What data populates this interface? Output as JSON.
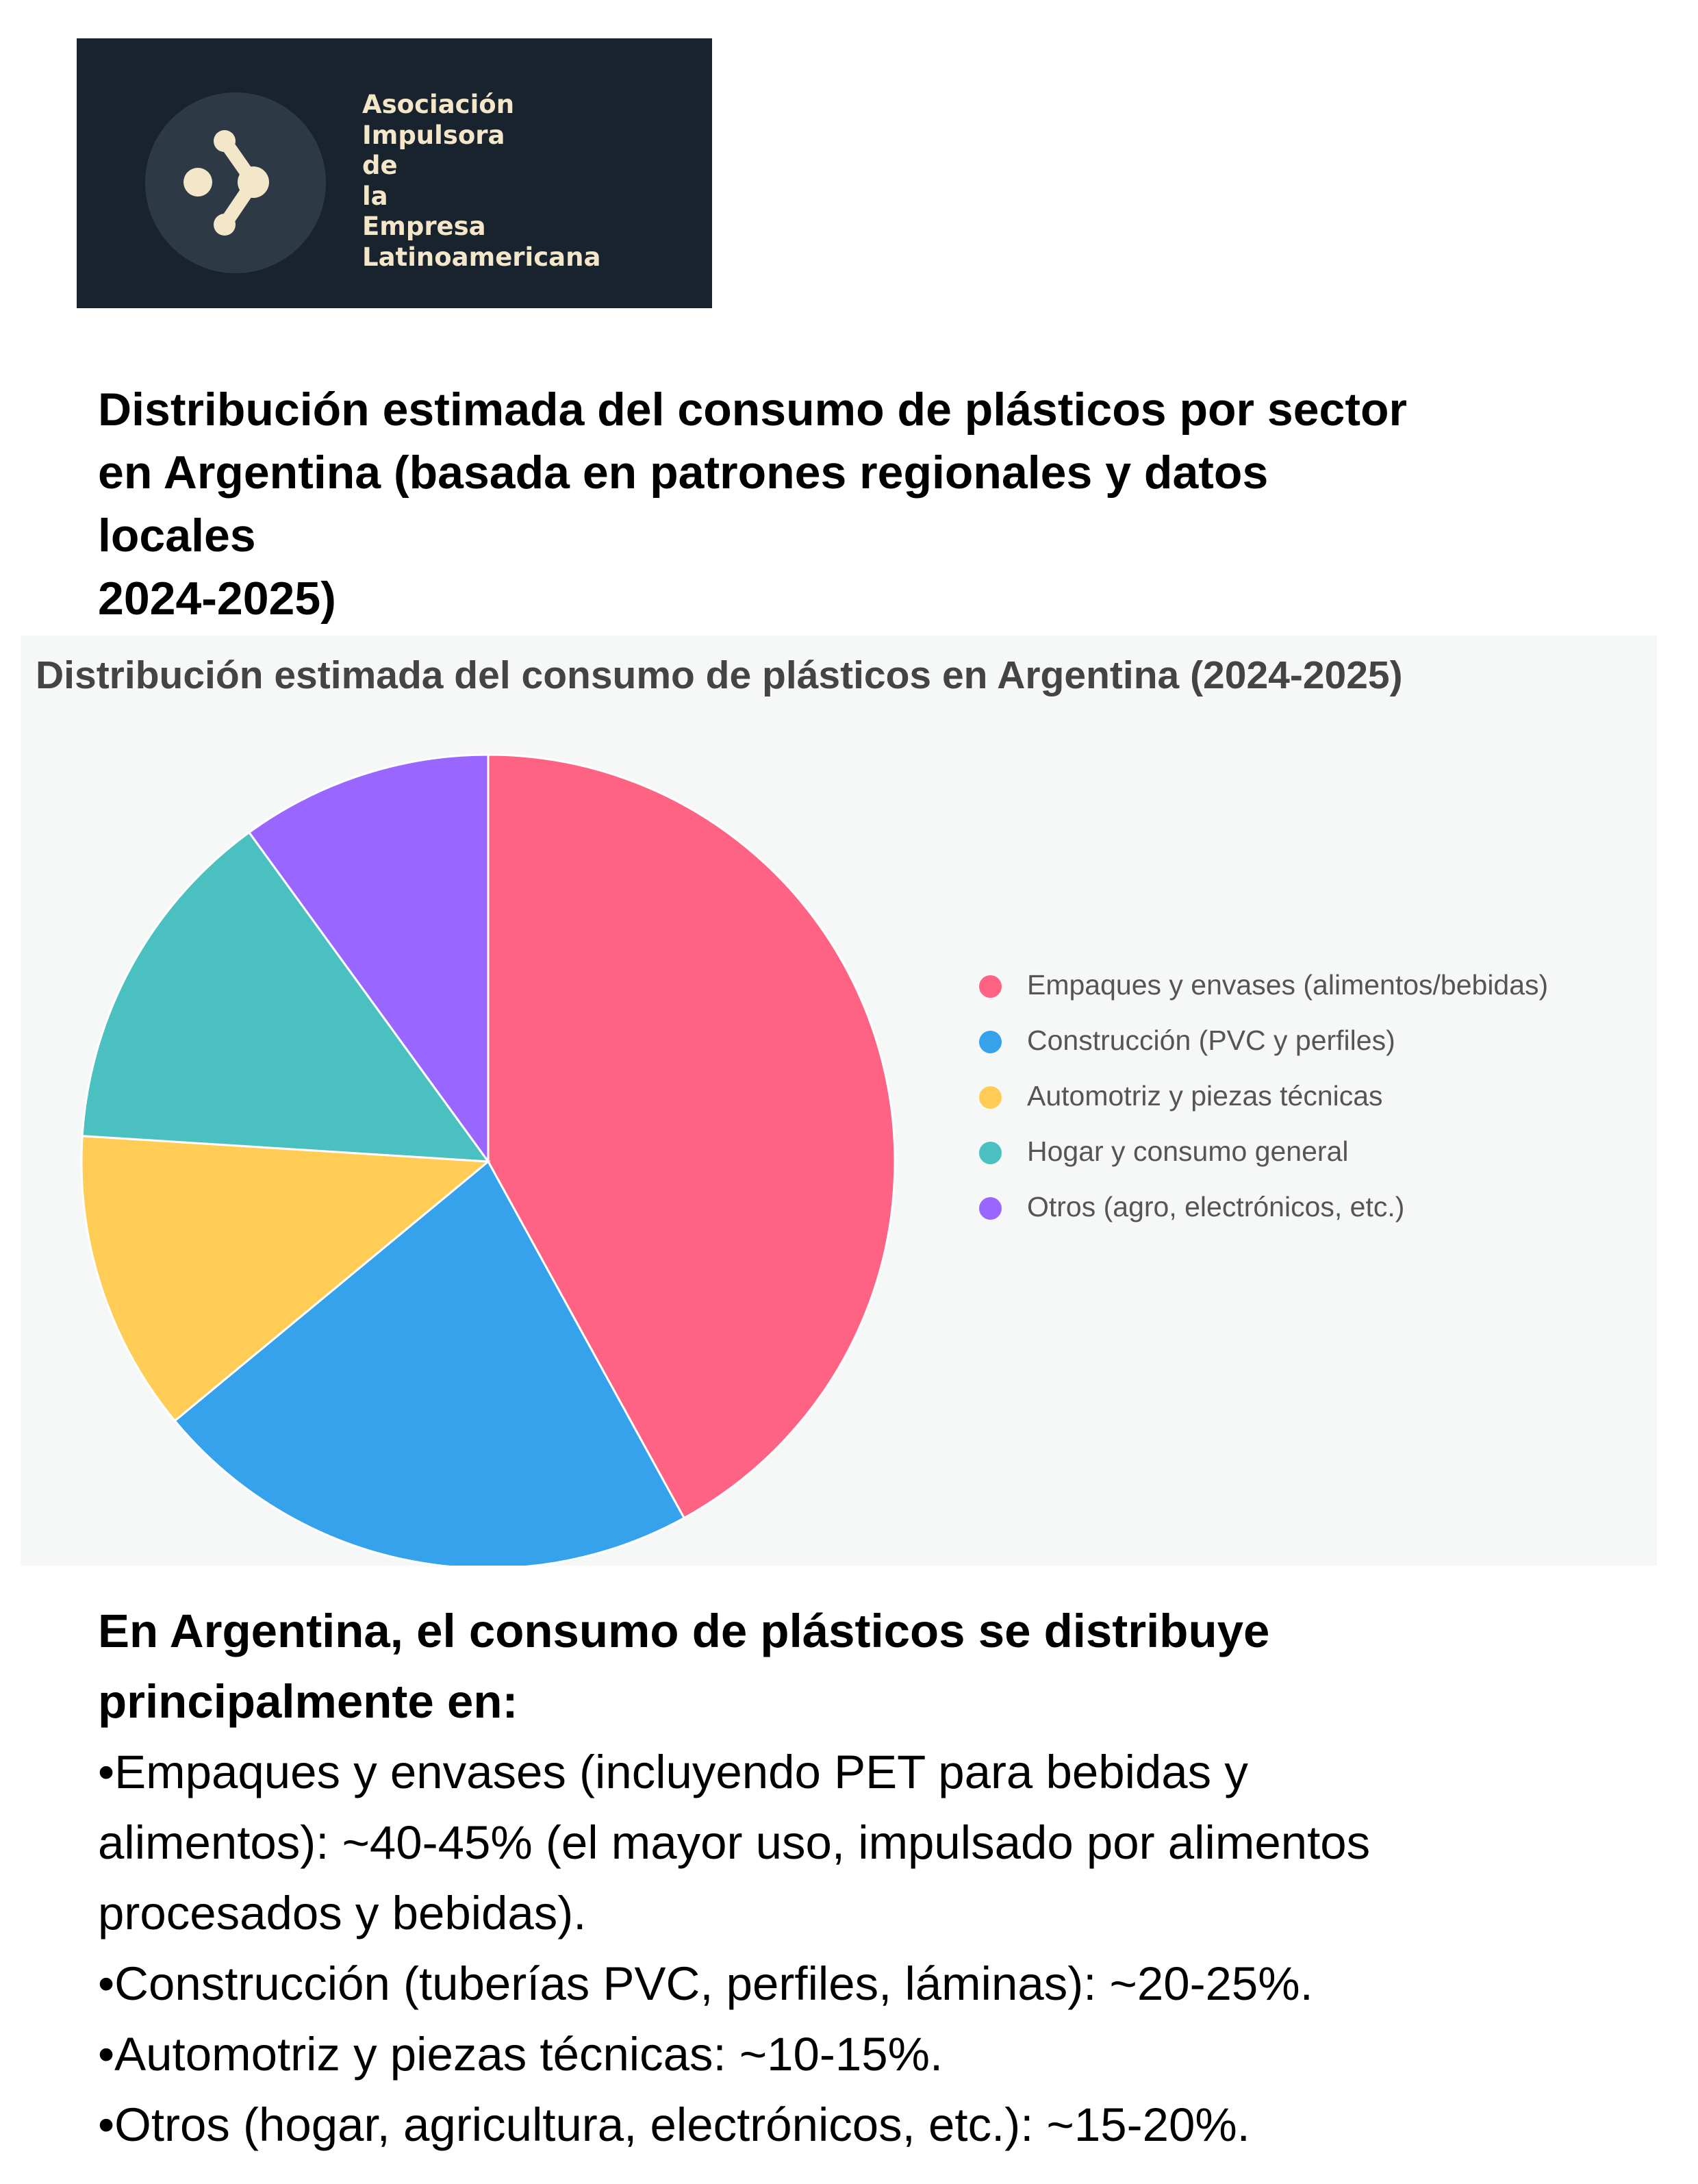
{
  "logo": {
    "lines": [
      "Asociación",
      "Impulsora",
      "de",
      "la",
      "Empresa",
      "Latinoamericana"
    ],
    "icon": "node-network-logo-icon",
    "colors": {
      "background": "#19232e",
      "circle": "#2e3946",
      "mark": "#f4e6c8"
    }
  },
  "page_title": {
    "lines": [
      "Distribución estimada del consumo de plásticos por sector",
      "en Argentina (basada en patrones regionales y datos",
      "locales",
      "2024-2025)"
    ]
  },
  "chart_data": {
    "type": "pie",
    "title": "Distribución estimada del consumo de plásticos en Argentina (2024-2025)",
    "categories": [
      "Empaques y envases (alimentos/bebidas)",
      "Construcción (PVC y perfiles)",
      "Automotriz y piezas técnicas",
      "Hogar y consumo general",
      "Otros (agro, electrónicos, etc.)"
    ],
    "values": [
      42,
      22,
      12,
      14,
      10
    ],
    "colors": [
      "#ff6384",
      "#36a2eb",
      "#ffcd56",
      "#4bc0c0",
      "#9966ff"
    ],
    "legend_position": "right"
  },
  "summary": {
    "heading_lines": [
      "En Argentina, el consumo de plásticos se distribuye",
      "principalmente en:"
    ],
    "body_lines": [
      "•Empaques y envases (incluyendo PET para bebidas y",
      "alimentos): ~40-45% (el mayor uso, impulsado por alimentos",
      "procesados y bebidas).",
      "•Construcción (tuberías PVC, perfiles, láminas): ~20-25%.",
      "•Automotriz y piezas técnicas: ~10-15%.",
      "•Otros (hogar, agricultura, electrónicos, etc.): ~15-20%."
    ]
  }
}
